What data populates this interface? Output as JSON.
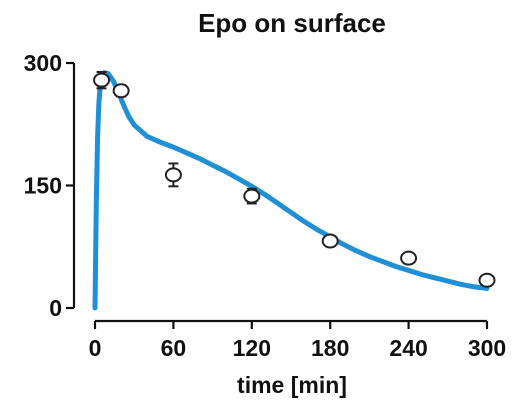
{
  "chart_data": {
    "type": "scatter",
    "title": "Epo on surface",
    "xlabel": "time [min]",
    "ylabel": "",
    "xlim": [
      0,
      300
    ],
    "ylim": [
      0,
      300
    ],
    "x_ticks": [
      0,
      60,
      120,
      180,
      240,
      300
    ],
    "y_ticks": [
      0,
      150,
      300
    ],
    "grid": false,
    "colors": {
      "fit": "#1f8fd6",
      "marker": "#222222"
    },
    "series": [
      {
        "kind": "points",
        "points": [
          {
            "x": 5,
            "y": 279,
            "err": 10
          },
          {
            "x": 20,
            "y": 266,
            "err": 7
          },
          {
            "x": 60,
            "y": 163,
            "err": 14
          },
          {
            "x": 120,
            "y": 137,
            "err": 9
          },
          {
            "x": 180,
            "y": 82,
            "err": 6
          },
          {
            "x": 240,
            "y": 61,
            "err": 6
          },
          {
            "x": 300,
            "y": 34,
            "err": 5
          }
        ]
      },
      {
        "kind": "line",
        "x": [
          0,
          1,
          2,
          3,
          4,
          5,
          7,
          10,
          14,
          18,
          22,
          26,
          30,
          40,
          50,
          60,
          70,
          80,
          90,
          100,
          110,
          120,
          130,
          140,
          150,
          160,
          170,
          180,
          190,
          200,
          210,
          220,
          230,
          240,
          250,
          260,
          270,
          280,
          290,
          300
        ],
        "y": [
          0,
          130,
          210,
          252,
          272,
          282,
          288,
          287,
          278,
          264,
          248,
          234,
          224,
          210,
          203,
          197,
          190,
          183,
          175,
          167,
          158,
          149,
          139,
          128,
          117,
          106,
          96,
          87,
          78,
          70,
          63,
          57,
          51,
          46,
          41,
          37,
          33,
          29,
          26,
          24
        ]
      }
    ]
  }
}
